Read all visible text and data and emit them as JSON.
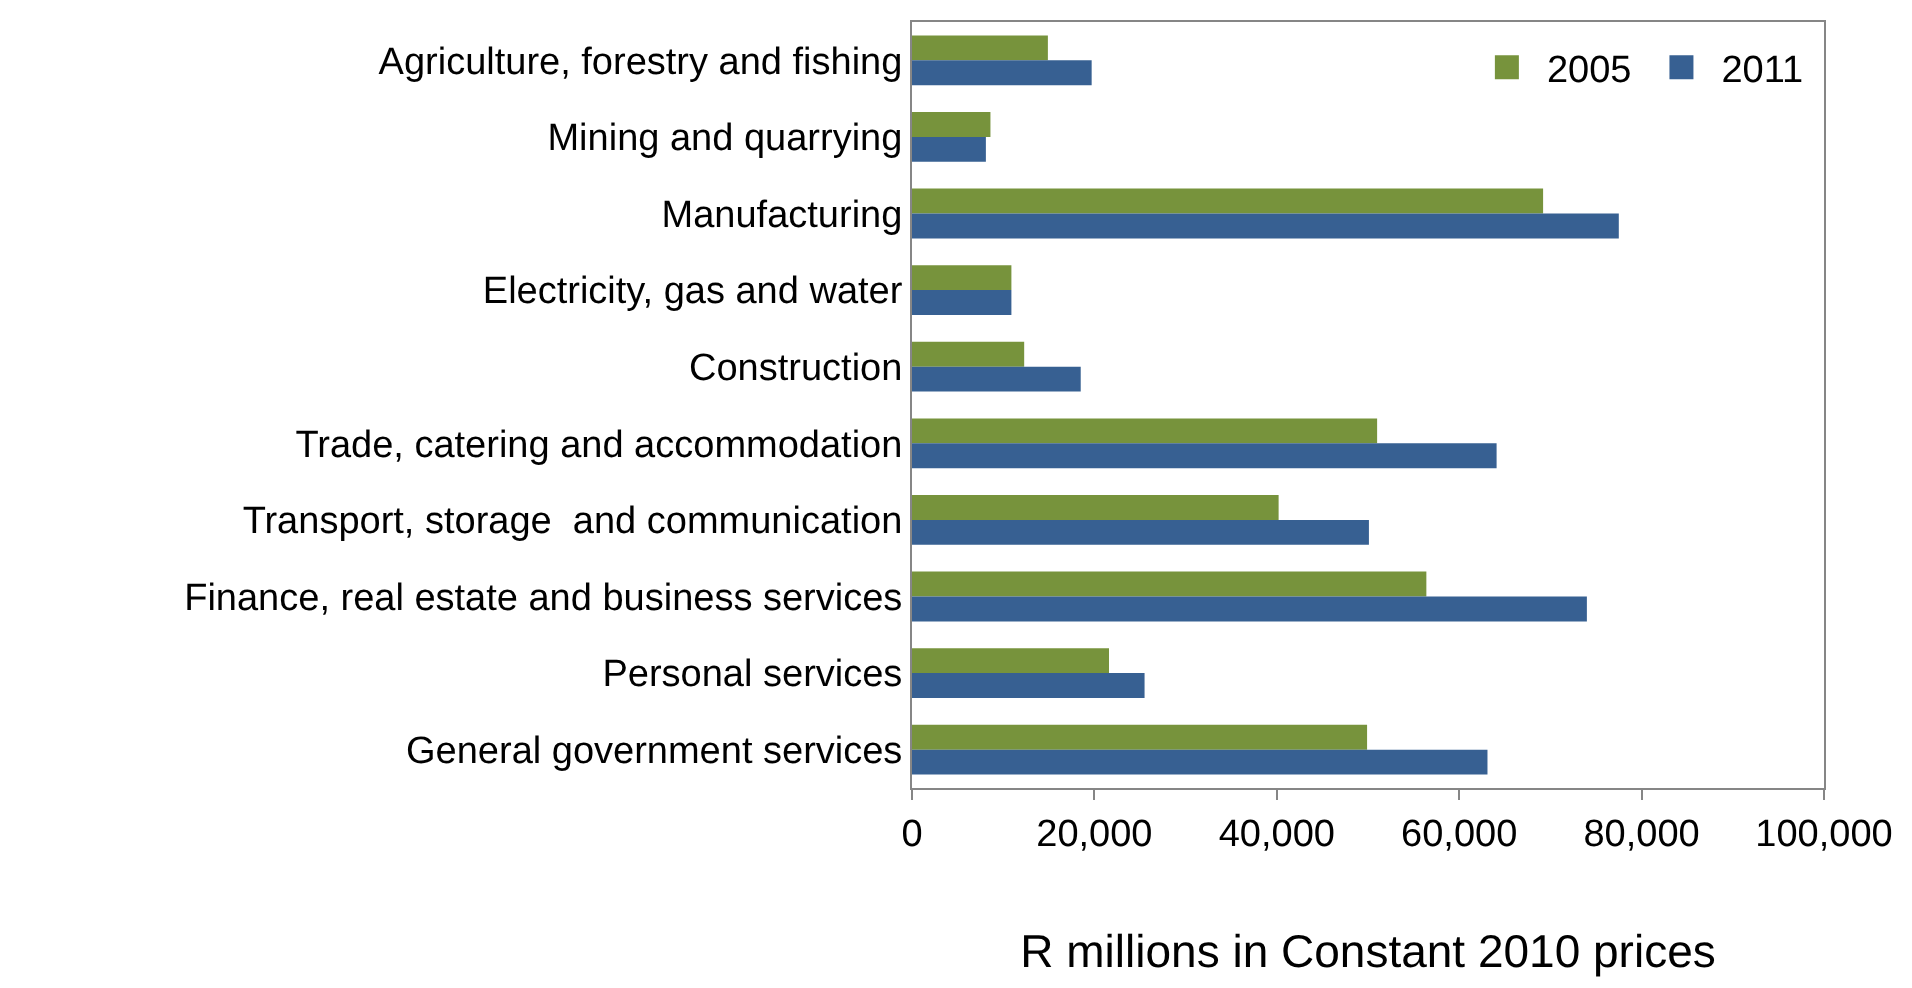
{
  "chart_data": {
    "type": "bar",
    "orientation": "horizontal",
    "xlabel": "R millions in Constant 2010 prices",
    "categories": [
      "Agriculture, forestry and fishing",
      "Mining and quarrying",
      "Manufacturing",
      "Electricity, gas and water",
      "Construction",
      "Trade, catering and accommodation",
      "Transport, storage  and communication",
      "Finance, real estate and business services",
      "Personal services",
      "General government services"
    ],
    "series": [
      {
        "name": "2005",
        "color": "#77933c",
        "values": [
          14900,
          8600,
          69200,
          10900,
          12300,
          51000,
          40200,
          56400,
          21600,
          49900
        ]
      },
      {
        "name": "2011",
        "color": "#376092",
        "values": [
          19700,
          8100,
          77500,
          10900,
          18500,
          64100,
          50100,
          74000,
          25500,
          63100
        ]
      }
    ],
    "xlim": [
      0,
      100000
    ],
    "xticks": [
      {
        "value": 0,
        "label": "0"
      },
      {
        "value": 20000,
        "label": "20,000"
      },
      {
        "value": 40000,
        "label": "40,000"
      },
      {
        "value": 60000,
        "label": "60,000"
      },
      {
        "value": 80000,
        "label": "80,000"
      },
      {
        "value": 100000,
        "label": "100,000"
      }
    ],
    "grid": false,
    "legend": "top right"
  }
}
